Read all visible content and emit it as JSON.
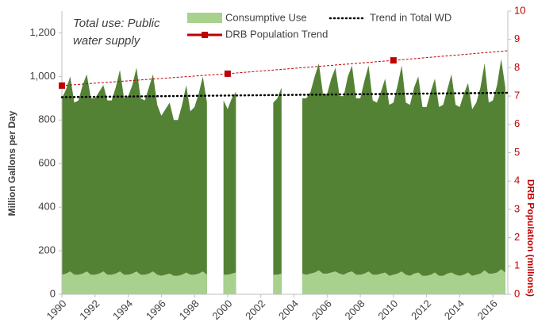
{
  "chart_data": {
    "type": "area",
    "annotation": [
      "Total use:  Public",
      "water supply"
    ],
    "y_label": "Million Gallons per Day",
    "y2_label": "DRB Population (millions)",
    "x": [
      1990,
      1990.25,
      1990.5,
      1990.75,
      1991,
      1991.25,
      1991.5,
      1991.75,
      1992,
      1992.25,
      1992.5,
      1992.75,
      1993,
      1993.25,
      1993.5,
      1993.75,
      1994,
      1994.25,
      1994.5,
      1994.75,
      1995,
      1995.25,
      1995.5,
      1995.75,
      1996,
      1996.25,
      1996.5,
      1996.75,
      1997,
      1997.25,
      1997.5,
      1997.75,
      1998,
      1998.25,
      1998.5,
      1998.75,
      1999,
      1999.25,
      1999.5,
      1999.75,
      2000,
      2000.25,
      2000.5,
      2000.75,
      2001,
      2001.25,
      2001.5,
      2001.75,
      2002,
      2002.25,
      2002.5,
      2002.75,
      2003,
      2003.25,
      2003.5,
      2003.75,
      2004,
      2004.25,
      2004.5,
      2004.75,
      2005,
      2005.25,
      2005.5,
      2005.75,
      2006,
      2006.25,
      2006.5,
      2006.75,
      2007,
      2007.25,
      2007.5,
      2007.75,
      2008,
      2008.25,
      2008.5,
      2008.75,
      2009,
      2009.25,
      2009.5,
      2009.75,
      2010,
      2010.25,
      2010.5,
      2010.75,
      2011,
      2011.25,
      2011.5,
      2011.75,
      2012,
      2012.25,
      2012.5,
      2012.75,
      2013,
      2013.25,
      2013.5,
      2013.75,
      2014,
      2014.25,
      2014.5,
      2014.75,
      2015,
      2015.25,
      2015.5,
      2015.75,
      2016,
      2016.25,
      2016.5,
      2016.75
    ],
    "series": [
      {
        "name": "Total Withdrawal",
        "color": "#548235",
        "values": [
          900,
          940,
          1000,
          880,
          890,
          960,
          1010,
          900,
          900,
          930,
          960,
          890,
          890,
          950,
          1030,
          900,
          910,
          960,
          1040,
          900,
          890,
          950,
          1010,
          870,
          820,
          850,
          880,
          800,
          800,
          870,
          960,
          840,
          860,
          920,
          1000,
          880,
          null,
          null,
          null,
          890,
          850,
          900,
          930,
          null,
          null,
          null,
          null,
          null,
          null,
          null,
          null,
          880,
          900,
          950,
          null,
          null,
          null,
          null,
          900,
          900,
          930,
          1000,
          1060,
          920,
          920,
          990,
          1040,
          910,
          910,
          1000,
          1050,
          900,
          900,
          980,
          1050,
          890,
          880,
          930,
          990,
          870,
          880,
          960,
          1050,
          880,
          870,
          950,
          1000,
          860,
          860,
          930,
          990,
          860,
          870,
          940,
          1010,
          870,
          860,
          920,
          970,
          850,
          880,
          950,
          1060,
          880,
          890,
          960,
          1080,
          950
        ]
      },
      {
        "name": "Consumptive Use",
        "color": "#a9d18e",
        "values": [
          90,
          95,
          105,
          90,
          90,
          95,
          105,
          90,
          90,
          95,
          105,
          90,
          90,
          95,
          105,
          90,
          90,
          95,
          105,
          90,
          90,
          95,
          105,
          90,
          85,
          90,
          95,
          85,
          85,
          90,
          100,
          90,
          90,
          95,
          105,
          90,
          null,
          null,
          null,
          90,
          90,
          95,
          100,
          null,
          null,
          null,
          null,
          null,
          null,
          null,
          null,
          90,
          90,
          95,
          null,
          null,
          null,
          null,
          95,
          90,
          95,
          100,
          110,
          95,
          95,
          100,
          105,
          95,
          90,
          100,
          105,
          90,
          90,
          95,
          105,
          90,
          90,
          95,
          100,
          85,
          90,
          95,
          105,
          90,
          85,
          95,
          100,
          85,
          85,
          90,
          100,
          85,
          85,
          95,
          100,
          90,
          85,
          90,
          100,
          85,
          90,
          95,
          110,
          95,
          95,
          100,
          115,
          100
        ]
      }
    ],
    "trend": {
      "name": "Trend in Total WD",
      "color": "#000000",
      "x": [
        1990,
        2016.9
      ],
      "values": [
        905,
        925
      ]
    },
    "population": {
      "name": "DRB Population Trend",
      "color": "#c00000",
      "axis": "y2",
      "x": [
        1990,
        2000,
        2010,
        2016.9
      ],
      "values": [
        7.37,
        7.79,
        8.26,
        8.6
      ]
    },
    "xlim": [
      1990,
      2016.9
    ],
    "xticks": [
      1990,
      1992,
      1994,
      1996,
      1998,
      2000,
      2002,
      2004,
      2006,
      2008,
      2010,
      2012,
      2014,
      2016
    ],
    "ylim": [
      0,
      1300
    ],
    "yticks": [
      0,
      200,
      400,
      600,
      800,
      {
        "value": 1000,
        "label": "1,000"
      },
      {
        "value": 1200,
        "label": "1,200"
      }
    ],
    "y2lim": [
      0,
      10
    ],
    "y2ticks": [
      0,
      1,
      2,
      3,
      4,
      5,
      6,
      7,
      8,
      9,
      10
    ]
  }
}
